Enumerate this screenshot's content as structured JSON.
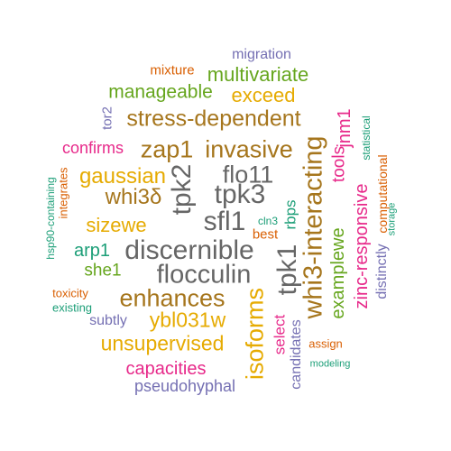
{
  "palette": {
    "teal": "#1b9e77",
    "orange": "#d95f02",
    "purple": "#7570b3",
    "magenta": "#e7298a",
    "green": "#66a61e",
    "gold": "#e6ab02",
    "brown": "#a6761d",
    "gray": "#666666"
  },
  "words": [
    {
      "text": "migration",
      "color": "purple"
    },
    {
      "text": "mixture",
      "color": "orange"
    },
    {
      "text": "multivariate",
      "color": "green"
    },
    {
      "text": "manageable",
      "color": "green"
    },
    {
      "text": "exceed",
      "color": "gold"
    },
    {
      "text": "stress-dependent",
      "color": "brown"
    },
    {
      "text": "tor2",
      "color": "purple"
    },
    {
      "text": "jnm1",
      "color": "magenta"
    },
    {
      "text": "statistical",
      "color": "teal"
    },
    {
      "text": "confirms",
      "color": "magenta"
    },
    {
      "text": "zap1",
      "color": "brown"
    },
    {
      "text": "invasive",
      "color": "brown"
    },
    {
      "text": "whi3-interacting",
      "color": "brown"
    },
    {
      "text": "tools",
      "color": "magenta"
    },
    {
      "text": "computational",
      "color": "orange"
    },
    {
      "text": "integrates",
      "color": "orange"
    },
    {
      "text": "gaussian",
      "color": "gold"
    },
    {
      "text": "flo11",
      "color": "gray"
    },
    {
      "text": "tpk2",
      "color": "gray"
    },
    {
      "text": "whi3δ",
      "color": "brown"
    },
    {
      "text": "tpk3",
      "color": "gray"
    },
    {
      "text": "zinc-responsive",
      "color": "magenta"
    },
    {
      "text": "storage",
      "color": "teal"
    },
    {
      "text": "hsp90-containing",
      "color": "teal"
    },
    {
      "text": "rbps",
      "color": "teal"
    },
    {
      "text": "sizewe",
      "color": "gold"
    },
    {
      "text": "sfl1",
      "color": "gray"
    },
    {
      "text": "cln3",
      "color": "teal"
    },
    {
      "text": "best",
      "color": "orange"
    },
    {
      "text": "examplewe",
      "color": "green"
    },
    {
      "text": "distinctly",
      "color": "purple"
    },
    {
      "text": "arp1",
      "color": "teal"
    },
    {
      "text": "discernible",
      "color": "gray"
    },
    {
      "text": "tpk1",
      "color": "gray"
    },
    {
      "text": "she1",
      "color": "green"
    },
    {
      "text": "flocculin",
      "color": "gray"
    },
    {
      "text": "toxicity",
      "color": "orange"
    },
    {
      "text": "enhances",
      "color": "brown"
    },
    {
      "text": "existing",
      "color": "teal"
    },
    {
      "text": "isoforms",
      "color": "gold"
    },
    {
      "text": "subtly",
      "color": "purple"
    },
    {
      "text": "ybl031w",
      "color": "gold"
    },
    {
      "text": "select",
      "color": "magenta"
    },
    {
      "text": "candidates",
      "color": "purple"
    },
    {
      "text": "unsupervised",
      "color": "gold"
    },
    {
      "text": "assign",
      "color": "orange"
    },
    {
      "text": "modeling",
      "color": "teal"
    },
    {
      "text": "capacities",
      "color": "magenta"
    },
    {
      "text": "pseudohyphal",
      "color": "purple"
    }
  ]
}
